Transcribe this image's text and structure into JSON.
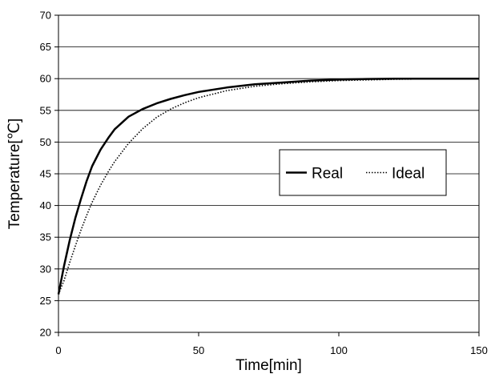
{
  "chart_data": {
    "type": "line",
    "title": "",
    "xlabel": "Time[min]",
    "ylabel": "Temperature[℃]",
    "xlim": [
      0,
      150
    ],
    "ylim": [
      20,
      70
    ],
    "xticks": [
      0,
      50,
      100,
      150
    ],
    "yticks": [
      20,
      25,
      30,
      35,
      40,
      45,
      50,
      55,
      60,
      65,
      70
    ],
    "grid": "horizontal",
    "legend_position": "center-right",
    "series": [
      {
        "name": "Real",
        "style": "solid",
        "color": "#000000",
        "x": [
          0,
          2,
          4,
          6,
          8,
          10,
          12,
          15,
          18,
          20,
          25,
          30,
          35,
          40,
          45,
          50,
          60,
          70,
          80,
          90,
          100,
          110,
          120,
          130,
          140,
          150
        ],
        "y": [
          26,
          30.5,
          34.5,
          38,
          41,
          43.8,
          46.2,
          48.8,
          50.8,
          52,
          54,
          55.2,
          56.1,
          56.8,
          57.4,
          57.9,
          58.6,
          59.1,
          59.4,
          59.7,
          59.85,
          59.95,
          60,
          60,
          60,
          60
        ]
      },
      {
        "name": "Ideal",
        "style": "dotted",
        "color": "#000000",
        "x": [
          0,
          2,
          4,
          6,
          8,
          10,
          12,
          15,
          18,
          20,
          25,
          30,
          35,
          40,
          45,
          50,
          60,
          70,
          80,
          90,
          100,
          110,
          120,
          130,
          140,
          150
        ],
        "y": [
          26,
          28.2,
          31,
          33.6,
          36.1,
          38.4,
          40.5,
          43.2,
          45.5,
          46.9,
          49.8,
          52.1,
          53.9,
          55.2,
          56.2,
          57,
          58.1,
          58.8,
          59.2,
          59.5,
          59.7,
          59.8,
          59.9,
          59.95,
          60,
          60
        ]
      }
    ]
  }
}
